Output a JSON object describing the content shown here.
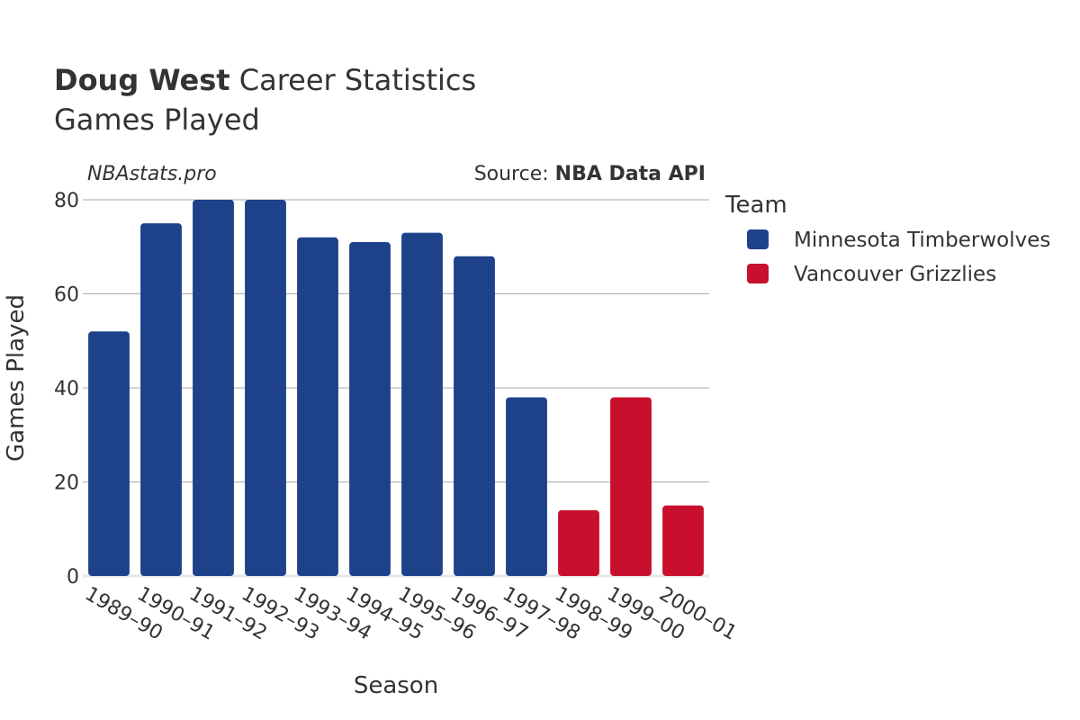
{
  "chart_data": {
    "type": "bar",
    "title_bold": "Doug West",
    "title_rest": " Career Statistics",
    "subtitle": "Games Played",
    "brand": "NBAstats.pro",
    "source_prefix": "Source: ",
    "source_bold": "NBA Data API",
    "xlabel": "Season",
    "ylabel": "Games Played",
    "ylim": [
      0,
      80
    ],
    "yticks": [
      0,
      20,
      40,
      60,
      80
    ],
    "grid": true,
    "legend_title": "Team",
    "legend_position": "right",
    "categories": [
      "1989–90",
      "1990–91",
      "1991–92",
      "1992–93",
      "1993–94",
      "1994–95",
      "1995–96",
      "1996–97",
      "1997–98",
      "1998–99",
      "1999–00",
      "2000–01"
    ],
    "series": [
      {
        "name": "Minnesota Timberwolves",
        "color": "#1d428a",
        "values": [
          52,
          75,
          80,
          80,
          72,
          71,
          73,
          68,
          38,
          null,
          null,
          null
        ]
      },
      {
        "name": "Vancouver Grizzlies",
        "color": "#c8102e",
        "values": [
          null,
          null,
          null,
          null,
          null,
          null,
          null,
          null,
          null,
          14,
          38,
          15
        ]
      }
    ]
  }
}
